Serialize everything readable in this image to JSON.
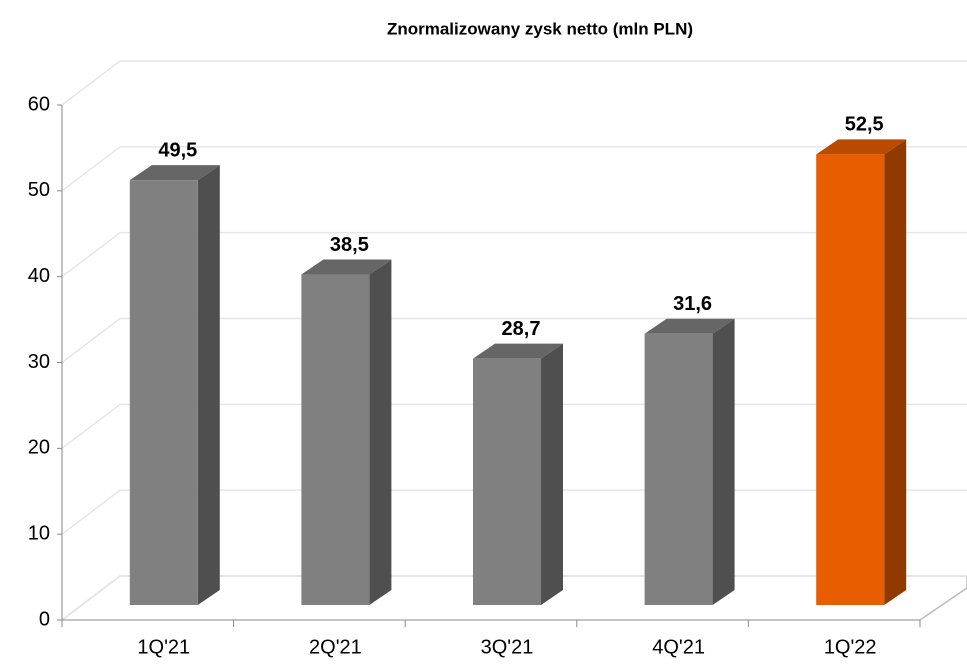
{
  "chart_data": {
    "type": "bar3d",
    "title": "Znormalizowany zysk netto (mln PLN)",
    "categories": [
      "1Q'21",
      "2Q'21",
      "3Q'21",
      "4Q'21",
      "1Q'22"
    ],
    "values": [
      49.5,
      38.5,
      28.7,
      31.6,
      52.5
    ],
    "value_labels": [
      "49,5",
      "38,5",
      "28,7",
      "31,6",
      "52,5"
    ],
    "colors": [
      "#808080",
      "#808080",
      "#808080",
      "#808080",
      "#e85d00"
    ],
    "ylim": [
      0,
      60
    ],
    "yticks": [
      0,
      10,
      20,
      30,
      40,
      50,
      60
    ],
    "grid": true
  }
}
